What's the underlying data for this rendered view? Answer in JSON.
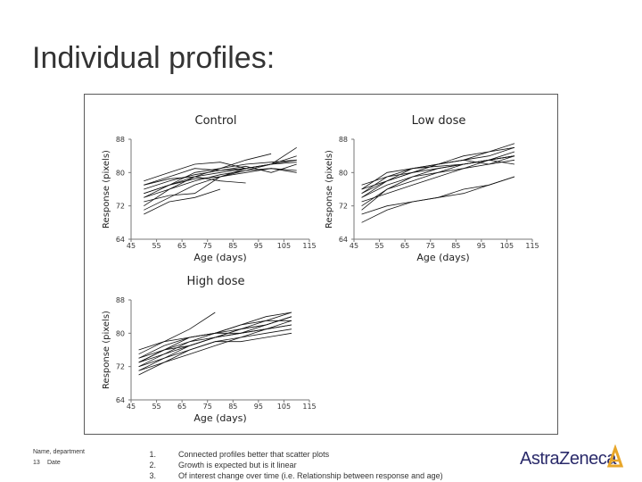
{
  "slide": {
    "title": "Individual profiles:",
    "footer": {
      "name": "Name, department",
      "page": "13",
      "date": "Date"
    },
    "notes": [
      {
        "num": "1.",
        "text": "Connected profiles better that scatter plots"
      },
      {
        "num": "2.",
        "text": "Growth is expected but is it linear"
      },
      {
        "num": "3.",
        "text": "Of interest change over time (i.e. Relationship between response and age)"
      }
    ],
    "logo": {
      "text": "AstraZeneca"
    }
  },
  "chart_data": [
    {
      "type": "line",
      "title": "Control",
      "xlabel": "Age (days)",
      "ylabel": "Response (pixels)",
      "xlim": [
        45,
        115
      ],
      "ylim": [
        64,
        88
      ],
      "xticks": [
        45,
        55,
        65,
        75,
        85,
        95,
        105,
        115
      ],
      "yticks": [
        64,
        72,
        80,
        88
      ],
      "series": [
        {
          "x": [
            50,
            60,
            70,
            80,
            90,
            100,
            110
          ],
          "y": [
            75,
            77,
            80,
            81,
            82,
            82.5,
            83
          ]
        },
        {
          "x": [
            50,
            60,
            70,
            80,
            90,
            100,
            110
          ],
          "y": [
            72,
            76,
            78,
            79.5,
            80.5,
            82,
            83
          ]
        },
        {
          "x": [
            50,
            60,
            70,
            80,
            90,
            100,
            110
          ],
          "y": [
            74,
            77,
            79,
            80,
            81,
            82,
            86
          ]
        },
        {
          "x": [
            50,
            60,
            70,
            80,
            90,
            100,
            110
          ],
          "y": [
            73,
            74.5,
            75,
            79,
            80,
            81,
            80.5
          ]
        },
        {
          "x": [
            50,
            60,
            70,
            80,
            90,
            100,
            110
          ],
          "y": [
            76,
            78,
            79.5,
            80.5,
            81,
            82,
            84
          ]
        },
        {
          "x": [
            50,
            60,
            70,
            80,
            90,
            100,
            110
          ],
          "y": [
            77,
            79,
            81,
            80.5,
            81.5,
            80,
            82
          ]
        },
        {
          "x": [
            50,
            60,
            70,
            80,
            90
          ],
          "y": [
            78,
            80,
            82,
            82.5,
            81
          ]
        },
        {
          "x": [
            50,
            60,
            70,
            80,
            90,
            100,
            110
          ],
          "y": [
            75,
            77,
            78.5,
            79,
            80.5,
            81,
            80
          ]
        },
        {
          "x": [
            50,
            60,
            70,
            80,
            90,
            100,
            110
          ],
          "y": [
            71,
            74,
            77,
            79,
            81,
            82,
            82.5
          ]
        },
        {
          "x": [
            50,
            60,
            70,
            80,
            90
          ],
          "y": [
            77,
            78.5,
            79,
            78,
            77.5
          ]
        },
        {
          "x": [
            50,
            60,
            70,
            80,
            90,
            100
          ],
          "y": [
            74,
            76,
            79,
            81,
            83,
            84.5
          ]
        },
        {
          "x": [
            50,
            60,
            70,
            80
          ],
          "y": [
            70,
            73,
            74,
            76
          ]
        }
      ]
    },
    {
      "type": "line",
      "title": "Low dose",
      "xlabel": "Age (days)",
      "ylabel": "Response (pixels)",
      "xlim": [
        45,
        115
      ],
      "ylim": [
        64,
        88
      ],
      "xticks": [
        45,
        55,
        65,
        75,
        85,
        95,
        105,
        115
      ],
      "yticks": [
        64,
        72,
        80,
        88
      ],
      "series": [
        {
          "x": [
            48,
            58,
            68,
            78,
            88,
            98,
            108
          ],
          "y": [
            76,
            78,
            80,
            81,
            82,
            83,
            84
          ]
        },
        {
          "x": [
            48,
            58,
            68,
            78,
            88,
            98,
            108
          ],
          "y": [
            74,
            77,
            79,
            80,
            81,
            82,
            83
          ]
        },
        {
          "x": [
            48,
            58,
            68,
            78,
            88,
            98,
            108
          ],
          "y": [
            72,
            76,
            79,
            81,
            82,
            83,
            85
          ]
        },
        {
          "x": [
            48,
            58,
            68,
            78,
            88,
            98,
            108
          ],
          "y": [
            75,
            78,
            80,
            82,
            83,
            84,
            86
          ]
        },
        {
          "x": [
            48,
            58,
            68,
            78,
            88,
            98,
            108
          ],
          "y": [
            77,
            79,
            81,
            82,
            83,
            85,
            86
          ]
        },
        {
          "x": [
            48,
            58,
            68,
            78,
            88,
            98,
            108
          ],
          "y": [
            73,
            75,
            77,
            79,
            81,
            83,
            84
          ]
        },
        {
          "x": [
            48,
            58,
            68,
            78,
            88,
            98,
            108
          ],
          "y": [
            70,
            72,
            73,
            74,
            75,
            77,
            79
          ]
        },
        {
          "x": [
            48,
            58,
            68,
            78,
            88,
            98,
            108
          ],
          "y": [
            68,
            71,
            73,
            74,
            76,
            77,
            79
          ]
        },
        {
          "x": [
            48,
            58,
            68,
            78,
            88,
            98,
            108
          ],
          "y": [
            76,
            80,
            81,
            81.5,
            82,
            83,
            84
          ]
        },
        {
          "x": [
            48,
            58,
            68,
            78,
            88,
            98,
            108
          ],
          "y": [
            74,
            78,
            81,
            82,
            84,
            85,
            87
          ]
        },
        {
          "x": [
            48,
            58,
            68,
            78,
            88,
            98,
            108
          ],
          "y": [
            75,
            79,
            80,
            82,
            83,
            82,
            84
          ]
        },
        {
          "x": [
            48,
            58,
            68,
            78,
            88,
            98,
            108
          ],
          "y": [
            71,
            76,
            78,
            80,
            82,
            83,
            82
          ]
        }
      ]
    },
    {
      "type": "line",
      "title": "High dose",
      "xlabel": "Age (days)",
      "ylabel": "Response (pixels)",
      "xlim": [
        45,
        115
      ],
      "ylim": [
        64,
        88
      ],
      "xticks": [
        45,
        55,
        65,
        75,
        85,
        95,
        105,
        115
      ],
      "yticks": [
        64,
        72,
        80,
        88
      ],
      "series": [
        {
          "x": [
            48,
            58,
            68,
            78
          ],
          "y": [
            75,
            78,
            81,
            85
          ]
        },
        {
          "x": [
            48,
            58,
            68,
            78,
            88,
            98,
            108
          ],
          "y": [
            73,
            75,
            77,
            79,
            81,
            82,
            84
          ]
        },
        {
          "x": [
            48,
            58,
            68,
            78,
            88,
            98,
            108
          ],
          "y": [
            74,
            76,
            78,
            80,
            82,
            83,
            85
          ]
        },
        {
          "x": [
            48,
            58,
            68,
            78,
            88,
            98,
            108
          ],
          "y": [
            72,
            74,
            77,
            79,
            80,
            82,
            84
          ]
        },
        {
          "x": [
            48,
            58,
            68,
            78,
            88,
            98,
            108
          ],
          "y": [
            71,
            74,
            76,
            78,
            79,
            80,
            81
          ]
        },
        {
          "x": [
            48,
            58,
            68,
            78,
            88,
            98,
            108
          ],
          "y": [
            72,
            75,
            78,
            79,
            80,
            81,
            82
          ]
        },
        {
          "x": [
            48,
            58,
            68,
            78,
            88,
            98,
            108
          ],
          "y": [
            70,
            73,
            76,
            78,
            78,
            79,
            80
          ]
        },
        {
          "x": [
            48,
            58,
            68,
            78,
            88,
            98,
            108
          ],
          "y": [
            73,
            76,
            77,
            79,
            81,
            83,
            83
          ]
        },
        {
          "x": [
            48,
            58,
            68,
            78,
            88,
            98,
            108
          ],
          "y": [
            76,
            78,
            79,
            80,
            81,
            82,
            84
          ]
        },
        {
          "x": [
            48,
            58,
            68,
            78,
            88,
            98,
            108
          ],
          "y": [
            74,
            77,
            79,
            80,
            80,
            81,
            82
          ]
        },
        {
          "x": [
            48,
            58,
            68,
            78,
            88,
            98,
            108
          ],
          "y": [
            71,
            73,
            75,
            77,
            79,
            81,
            83
          ]
        },
        {
          "x": [
            48,
            58,
            68,
            78,
            88,
            98,
            108
          ],
          "y": [
            73,
            76,
            79,
            80,
            82,
            84,
            85
          ]
        }
      ]
    }
  ]
}
